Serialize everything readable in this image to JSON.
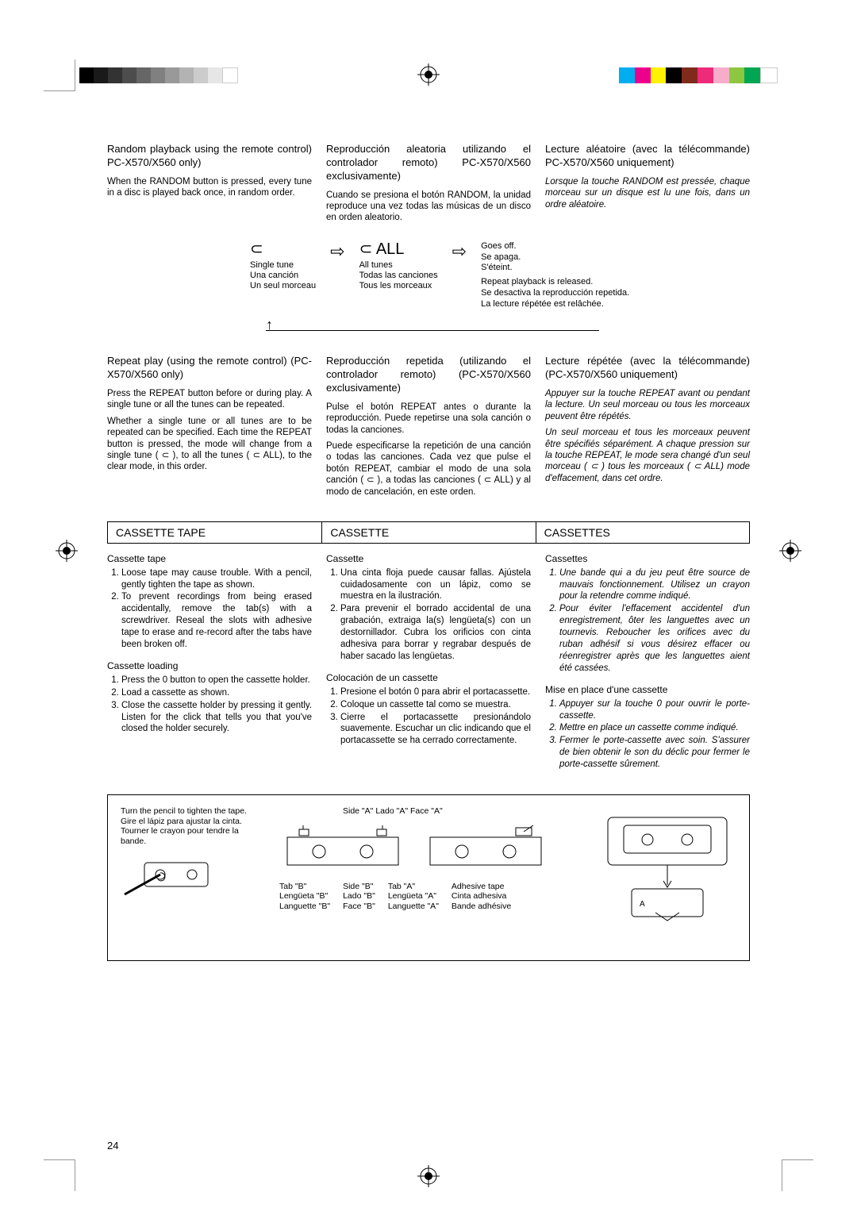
{
  "colorbar_left": [
    "#000000",
    "#1a1a1a",
    "#333333",
    "#4d4d4d",
    "#666666",
    "#808080",
    "#999999",
    "#b3b3b3",
    "#cccccc",
    "#e6e6e6",
    "#ffffff"
  ],
  "colorbar_right": [
    "#00aeef",
    "#ec008c",
    "#fff200",
    "#000000",
    "#802a1c",
    "#ee2a7b",
    "#f7adc9",
    "#8dc63f",
    "#00a651",
    "#ffffff"
  ],
  "section1": {
    "en": {
      "title": "Random playback using the remote control) PC-X570/X560 only)",
      "body": "When the RANDOM button is pressed, every tune in a disc is played back once, in random order."
    },
    "es": {
      "title": "Reproducción aleatoria utilizando el controlador remoto) PC-X570/X560 exclusivamente)",
      "body": "Cuando se presiona el botón RANDOM, la unidad reproduce una vez todas las músicas de un disco en orden aleatorio."
    },
    "fr": {
      "title": "Lecture aléatoire (avec la télécommande) PC-X570/X560 uniquement)",
      "body": "Lorsque la touche RANDOM est pressée, chaque morceau sur un disque est lu une fois, dans un ordre aléatoire."
    }
  },
  "diagram": {
    "single": {
      "en": "Single tune",
      "es": "Una canción",
      "fr": "Un seul morceau"
    },
    "all_label": "ALL",
    "all": {
      "en": "All tunes",
      "es": "Todas las canciones",
      "fr": "Tous les morceaux"
    },
    "off": {
      "en": "Goes off.",
      "es": "Se apaga.",
      "fr": "S'éteint."
    },
    "release": {
      "en": "Repeat playback is released.",
      "es": "Se desactiva la reproducción repetida.",
      "fr": "La lecture répétée est relâchée."
    }
  },
  "section2": {
    "en": {
      "title": "Repeat play (using the remote control) (PC-X570/X560 only)",
      "b1": "Press the REPEAT button before or during play. A single tune or all the tunes can be repeated.",
      "b2": "Whether a single tune or all tunes are to be repeated can be specified. Each time the REPEAT button is pressed, the mode will change from a single tune ( ⊂ ), to all the tunes ( ⊂ ALL), to the clear mode, in this order."
    },
    "es": {
      "title": "Reproducción repetida (utilizando el controlador remoto) (PC-X570/X560 exclusivamente)",
      "b1": "Pulse el botón REPEAT antes o durante la reproducción. Puede repetirse una sola canción o todas la canciones.",
      "b2": "Puede especificarse la repetición de una canción o todas las canciones. Cada vez que pulse el botón REPEAT, cambiar el modo de una sola canción ( ⊂ ), a todas las canciones ( ⊂ ALL) y al modo de cancelación, en este orden."
    },
    "fr": {
      "title": "Lecture répétée (avec la télécommande) (PC-X570/X560 uniquement)",
      "b1": "Appuyer sur la touche REPEAT avant ou pendant la lecture. Un seul morceau ou tous les morceaux peuvent être répétés.",
      "b2": "Un seul morceau et tous les morceaux peuvent être spécifiés séparément. A chaque pression sur la touche REPEAT, le mode sera changé d'un seul morceau ( ⊂ )  tous les morceaux ( ⊂ ALL)  mode d'effacement, dans cet ordre."
    }
  },
  "cassette_header": {
    "en": "CASSETTE TAPE",
    "es": "CASSETTE",
    "fr": "CASSETTES"
  },
  "cassette": {
    "en": {
      "h": "Cassette tape",
      "i1": "Loose tape may cause trouble. With a pencil, gently tighten the tape as shown.",
      "i2": "To prevent recordings from being erased accidentally, remove the tab(s) with a screwdriver. Reseal the slots with adhesive tape to erase and re-record after the tabs have been broken off.",
      "h2": "Cassette loading",
      "l1": "Press the 0   button to open the cassette holder.",
      "l2": "Load a cassette as shown.",
      "l3": "Close the cassette holder by pressing it gently. Listen for the click that tells you that you've closed the holder securely."
    },
    "es": {
      "h": "Cassette",
      "i1": "Una cinta floja puede causar fallas. Ajústela cuidadosamente con un lápiz, como se muestra en la ilustración.",
      "i2": "Para prevenir el borrado accidental de una grabación, extraiga la(s) lengüeta(s) con un destornillador. Cubra los orificios con cinta adhesiva para borrar y regrabar después de haber sacado las lengüetas.",
      "h2": "Colocación de un cassette",
      "l1": "Presione el botón 0   para abrir el portacassette.",
      "l2": "Coloque un cassette tal como se muestra.",
      "l3": "Cierre el portacassette presionándolo suavemente. Escuchar un clic indicando que el portacassette se ha cerrado correctamente."
    },
    "fr": {
      "h": "Cassettes",
      "i1": "Une bande qui a du jeu peut être source de mauvais fonctionnement. Utilisez un crayon pour la retendre comme indiqué.",
      "i2": "Pour éviter l'effacement accidentel d'un enregistrement, ôter les languettes avec un tournevis. Reboucher les orifices avec du ruban adhésif si vous désirez effacer ou réenregistrer après que les languettes aient été cassées.",
      "h2": "Mise en place d'une cassette",
      "l1": "Appuyer sur la touche 0   pour ouvrir le porte-cassette.",
      "l2": "Mettre en place un cassette comme indiqué.",
      "l3": "Fermer le porte-cassette avec soin. S'assurer de bien obtenir le son du déclic pour fermer le porte-cassette sûrement."
    }
  },
  "illus": {
    "pencil": {
      "en": "Turn the pencil to tighten the tape.",
      "es": "Gire el lápiz para ajustar la cinta.",
      "fr": "Tourner le crayon pour tendre la bande."
    },
    "sideA": {
      "en": "Side \"A\"",
      "es": "Lado \"A\"",
      "fr": "Face \"A\""
    },
    "sideB": {
      "en": "Side \"B\"",
      "es": "Lado \"B\"",
      "fr": "Face \"B\""
    },
    "tabA": {
      "en": "Tab \"A\"",
      "es": "Lengüeta \"A\"",
      "fr": "Languette \"A\""
    },
    "tabB": {
      "en": "Tab \"B\"",
      "es": "Lengüeta \"B\"",
      "fr": "Languette \"B\""
    },
    "adh": {
      "en": "Adhesive tape",
      "es": "Cinta adhesiva",
      "fr": "Bande adhésive"
    }
  },
  "page_number": "24"
}
